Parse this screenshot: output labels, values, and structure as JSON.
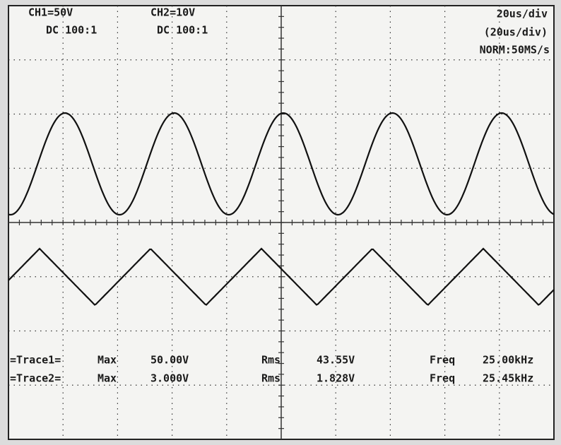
{
  "header": {
    "ch1": {
      "scale": "CH1=50V",
      "coupling": "DC 100:1"
    },
    "ch2": {
      "scale": "CH2=10V",
      "coupling": "DC 100:1"
    },
    "timebase": "20us/div",
    "timebase_alt": "(20us/div)",
    "mode": "NORM:50MS/s"
  },
  "measurements": [
    {
      "trace": "=Trace1=",
      "max_label": "Max",
      "max": "50.00V",
      "rms_label": "Rms",
      "rms": "43.55V",
      "freq_label": "Freq",
      "freq": "25.00kHz"
    },
    {
      "trace": "=Trace2=",
      "max_label": "Max",
      "max": "3.000V",
      "rms_label": "Rms",
      "rms": "1.828V",
      "freq_label": "Freq",
      "freq": "25.45kHz"
    }
  ]
}
